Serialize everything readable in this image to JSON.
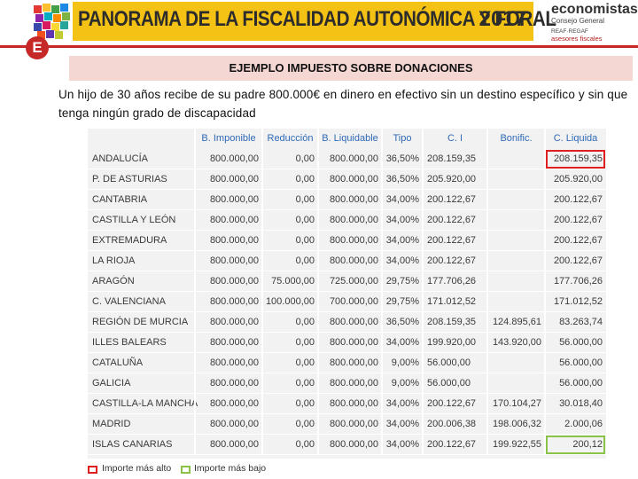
{
  "header": {
    "title": "PANORAMA DE LA FISCALIDAD AUTONÓMICA Y FORAL",
    "year": "2017",
    "brand_name": "economistas",
    "brand_sub": "Consejo General",
    "brand_line1": "REAF·REGAF",
    "brand_line2": "asesores fiscales",
    "badge": "E"
  },
  "slide_title": "EJEMPLO IMPUESTO SOBRE DONACIONES",
  "description": "Un hijo de 30 años recibe de su padre 800.000€ en dinero en efectivo sin un destino específico y sin que tenga ningún grado de discapacidad",
  "table": {
    "headers": [
      "",
      "B. Imponible",
      "Reducción",
      "B. Liquidable",
      "Tipo",
      "C. I",
      "Bonific.",
      "C. Liquida"
    ],
    "rows": [
      [
        "ANDALUCÍA",
        "800.000,00",
        "0,00",
        "800.000,00",
        "36,50%",
        "208.159,35",
        "",
        "208.159,35"
      ],
      [
        "P. DE ASTURIAS",
        "800.000,00",
        "0,00",
        "800.000,00",
        "36,50%",
        "205.920,00",
        "",
        "205.920,00"
      ],
      [
        "CANTABRIA",
        "800.000,00",
        "0,00",
        "800.000,00",
        "34,00%",
        "200.122,67",
        "",
        "200.122,67"
      ],
      [
        "CASTILLA Y LEÓN",
        "800.000,00",
        "0,00",
        "800.000,00",
        "34,00%",
        "200.122,67",
        "",
        "200.122,67"
      ],
      [
        "EXTREMADURA",
        "800.000,00",
        "0,00",
        "800.000,00",
        "34,00%",
        "200.122,67",
        "",
        "200.122,67"
      ],
      [
        "LA RIOJA",
        "800.000,00",
        "0,00",
        "800.000,00",
        "34,00%",
        "200.122,67",
        "",
        "200.122,67"
      ],
      [
        "ARAGÓN",
        "800.000,00",
        "75.000,00",
        "725.000,00",
        "29,75%",
        "177.706,26",
        "",
        "177.706,26"
      ],
      [
        "C. VALENCIANA",
        "800.000,00",
        "100.000,00",
        "700.000,00",
        "29,75%",
        "171.012,52",
        "",
        "171.012,52"
      ],
      [
        "REGIÓN DE MURCIA",
        "800.000,00",
        "0,00",
        "800.000,00",
        "36,50%",
        "208.159,35",
        "124.895,61",
        "83.263,74"
      ],
      [
        "ILLES BALEARS",
        "800.000,00",
        "0,00",
        "800.000,00",
        "34,00%",
        "199.920,00",
        "143.920,00",
        "56.000,00"
      ],
      [
        "CATALUÑA",
        "800.000,00",
        "0,00",
        "800.000,00",
        "9,00%",
        "56.000,00",
        "",
        "56.000,00"
      ],
      [
        "GALICIA",
        "800.000,00",
        "0,00",
        "800.000,00",
        "9,00%",
        "56.000,00",
        "",
        "56.000,00"
      ],
      [
        "CASTILLA-LA MANCHA",
        "800.000,00",
        "0,00",
        "800.000,00",
        "34,00%",
        "200.122,67",
        "170.104,27",
        "30.018,40"
      ],
      [
        "MADRID",
        "800.000,00",
        "0,00",
        "800.000,00",
        "34,00%",
        "200.006,38",
        "198.006,32",
        "2.000,06"
      ],
      [
        "ISLAS CANARIAS",
        "800.000,00",
        "0,00",
        "800.000,00",
        "34,00%",
        "200.122,67",
        "199.922,55",
        "200,12"
      ]
    ],
    "highest_row": 0,
    "lowest_row": 14
  },
  "legend": {
    "high_label": "Importe más alto",
    "low_label": "Importe más bajo",
    "high_color": "#e02020",
    "low_color": "#8bc34a"
  }
}
